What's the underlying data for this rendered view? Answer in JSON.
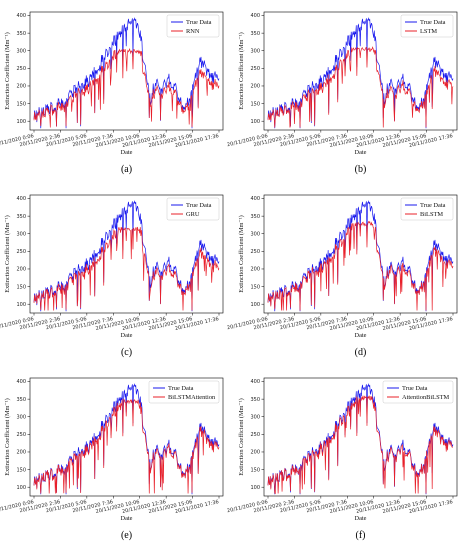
{
  "colors": {
    "true_series": "#1a1aee",
    "pred_series": "#e8202a"
  },
  "chart_data": [
    {
      "type": "line",
      "panel": "a",
      "caption": "(a)",
      "xlabel": "Date",
      "ylabel": "Extinction Coefficient (Mm⁻¹)",
      "ylim": [
        75,
        410
      ],
      "yticks": [
        100,
        150,
        200,
        250,
        300,
        350,
        400
      ],
      "xticks": [
        "20/11/2020 0:06",
        "20/11/2020 2:36",
        "20/11/2020 5:06",
        "20/11/2020 7:36",
        "20/11/2020 10:06",
        "20/11/2020 12:36",
        "20/11/2020 15:06",
        "20/11/2020 17:36"
      ],
      "legend_position": "upper-right",
      "grid": false,
      "series": [
        {
          "name": "True Data"
        },
        {
          "name": "RNN"
        }
      ],
      "pred_bias": 0.82,
      "pred_cap": 305
    },
    {
      "type": "line",
      "panel": "b",
      "caption": "(b)",
      "xlabel": "Date",
      "ylabel": "Extinction Coefficient (Mm⁻¹)",
      "ylim": [
        75,
        410
      ],
      "yticks": [
        100,
        150,
        200,
        250,
        300,
        350,
        400
      ],
      "xticks": [
        "20/11/2020 0:06",
        "20/11/2020 2:36",
        "20/11/2020 5:06",
        "20/11/2020 7:36",
        "20/11/2020 10:06",
        "20/11/2020 12:36",
        "20/11/2020 15:06",
        "20/11/2020 17:36"
      ],
      "legend_position": "upper-right",
      "grid": false,
      "series": [
        {
          "name": "True Data"
        },
        {
          "name": "LSTM"
        }
      ],
      "pred_bias": 0.84,
      "pred_cap": 310
    },
    {
      "type": "line",
      "panel": "c",
      "caption": "(c)",
      "xlabel": "Date",
      "ylabel": "Extinction Coefficient (Mm⁻¹)",
      "ylim": [
        75,
        410
      ],
      "yticks": [
        100,
        150,
        200,
        250,
        300,
        350,
        400
      ],
      "xticks": [
        "20/11/2020 0:06",
        "20/11/2020 2:36",
        "20/11/2020 5:06",
        "20/11/2020 7:36",
        "20/11/2020 10:06",
        "20/11/2020 12:36",
        "20/11/2020 15:06",
        "20/11/2020 17:36"
      ],
      "legend_position": "upper-right",
      "grid": false,
      "series": [
        {
          "name": "True Data"
        },
        {
          "name": "GRU"
        }
      ],
      "pred_bias": 0.86,
      "pred_cap": 320
    },
    {
      "type": "line",
      "panel": "d",
      "caption": "(d)",
      "xlabel": "Date",
      "ylabel": "Extinction Coefficient (Mm⁻¹)",
      "ylim": [
        75,
        410
      ],
      "yticks": [
        100,
        150,
        200,
        250,
        300,
        350,
        400
      ],
      "xticks": [
        "20/11/2020 0:06",
        "20/11/2020 2:36",
        "20/11/2020 5:06",
        "20/11/2020 7:36",
        "20/11/2020 10:06",
        "20/11/2020 12:36",
        "20/11/2020 15:06",
        "20/11/2020 17:36"
      ],
      "legend_position": "upper-right",
      "grid": false,
      "series": [
        {
          "name": "True Data"
        },
        {
          "name": "BiLSTM"
        }
      ],
      "pred_bias": 0.9,
      "pred_cap": 335
    },
    {
      "type": "line",
      "panel": "e",
      "caption": "(e)",
      "xlabel": "Date",
      "ylabel": "Extinction Coefficient (Mm⁻¹)",
      "ylim": [
        75,
        410
      ],
      "yticks": [
        100,
        150,
        200,
        250,
        300,
        350,
        400
      ],
      "xticks": [
        "20/11/2020 0:06",
        "20/11/2020 2:36",
        "20/11/2020 5:06",
        "20/11/2020 7:36",
        "20/11/2020 10:06",
        "20/11/2020 12:36",
        "20/11/2020 15:06",
        "20/11/2020 17:36"
      ],
      "legend_position": "upper-right",
      "grid": false,
      "series": [
        {
          "name": "True Data"
        },
        {
          "name": "BiLSTMAttention"
        }
      ],
      "pred_bias": 0.93,
      "pred_cap": 350
    },
    {
      "type": "line",
      "panel": "f",
      "caption": "(f)",
      "xlabel": "Date",
      "ylabel": "Extinction Coefficient (Mm⁻¹)",
      "ylim": [
        75,
        410
      ],
      "yticks": [
        100,
        150,
        200,
        250,
        300,
        350,
        400
      ],
      "xticks": [
        "20/11/2020 0:06",
        "20/11/2020 2:36",
        "20/11/2020 5:06",
        "20/11/2020 7:36",
        "20/11/2020 10:06",
        "20/11/2020 12:36",
        "20/11/2020 15:06",
        "20/11/2020 17:36"
      ],
      "legend_position": "upper-right",
      "grid": false,
      "series": [
        {
          "name": "True Data"
        },
        {
          "name": "AttentionBiLSTM"
        }
      ],
      "pred_bias": 0.95,
      "pred_cap": 360
    }
  ]
}
